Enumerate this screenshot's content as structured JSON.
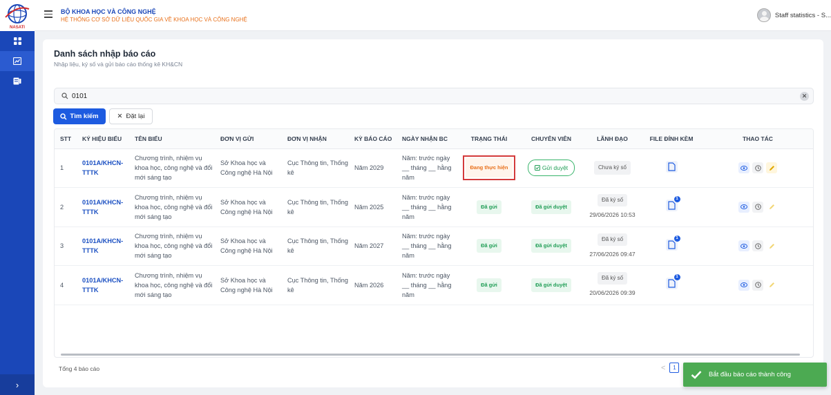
{
  "header": {
    "org_title": "BỘ KHOA HỌC VÀ CÔNG NGHỆ",
    "org_subtitle": "HỆ THỐNG CƠ SỞ DỮ LIỆU QUỐC GIA VỀ KHOA HỌC VÀ CÔNG NGHỆ",
    "user_name": "Staff statistics - S..."
  },
  "logo": {
    "text": "NASATI"
  },
  "sidebar": {
    "items": [
      {
        "icon": "dashboard-icon"
      },
      {
        "icon": "chart-icon"
      },
      {
        "icon": "report-icon"
      }
    ],
    "expand_label": "›"
  },
  "page": {
    "title": "Danh sách nhập báo cáo",
    "subtitle": "Nhập liệu, ký số và gửi báo cáo thống kê KH&CN"
  },
  "search": {
    "value": "0101",
    "placeholder": ""
  },
  "buttons": {
    "search": "Tìm kiếm",
    "reset": "Đặt lại"
  },
  "table": {
    "columns": [
      "STT",
      "KÝ HIỆU BIỂU",
      "TÊN BIỂU",
      "ĐƠN VỊ GỬI",
      "ĐƠN VỊ NHẬN",
      "KỲ BÁO CÁO",
      "NGÀY NHẬN BC",
      "TRẠNG THÁI",
      "CHUYÊN VIÊN",
      "LÃNH ĐẠO",
      "FILE ĐÍNH KÈM",
      "THAO TÁC"
    ],
    "rows": [
      {
        "stt": "1",
        "code": "0101A/KHCN-TTTK",
        "name": "Chương trình, nhiệm vụ khoa học, công nghệ và đổi mới sáng tạo",
        "sender": "Sở Khoa học và Công nghệ Hà Nội",
        "receiver": "Cục Thông tin, Thống kê",
        "period": "Năm 2029",
        "received": "Năm: trước ngày __ tháng __ hằng năm",
        "status": "Đang thực hiện",
        "specialist": "Gửi duyệt",
        "leader": "Chưa ký số",
        "leader_date": "",
        "files": ""
      },
      {
        "stt": "2",
        "code": "0101A/KHCN-TTTK",
        "name": "Chương trình, nhiệm vụ khoa học, công nghệ và đổi mới sáng tạo",
        "sender": "Sở Khoa học và Công nghệ Hà Nội",
        "receiver": "Cục Thông tin, Thống kê",
        "period": "Năm 2025",
        "received": "Năm: trước ngày __ tháng __ hằng năm",
        "status": "Đã gửi",
        "specialist": "Đã gửi duyệt",
        "leader": "Đã ký số",
        "leader_date": "29/06/2026 10:53",
        "files": "1"
      },
      {
        "stt": "3",
        "code": "0101A/KHCN-TTTK",
        "name": "Chương trình, nhiệm vụ khoa học, công nghệ và đổi mới sáng tạo",
        "sender": "Sở Khoa học và Công nghệ Hà Nội",
        "receiver": "Cục Thông tin, Thống kê",
        "period": "Năm 2027",
        "received": "Năm: trước ngày __ tháng __ hằng năm",
        "status": "Đã gửi",
        "specialist": "Đã gửi duyệt",
        "leader": "Đã ký số",
        "leader_date": "27/06/2026 09:47",
        "files": "1"
      },
      {
        "stt": "4",
        "code": "0101A/KHCN-TTTK",
        "name": "Chương trình, nhiệm vụ khoa học, công nghệ và đổi mới sáng tạo",
        "sender": "Sở Khoa học và Công nghệ Hà Nội",
        "receiver": "Cục Thông tin, Thống kê",
        "period": "Năm 2026",
        "received": "Năm: trước ngày __ tháng __ hằng năm",
        "status": "Đã gửi",
        "specialist": "Đã gửi duyệt",
        "leader": "Đã ký số",
        "leader_date": "20/06/2026 09:39",
        "files": "1"
      }
    ]
  },
  "footer": {
    "total": "Tổng 4 báo cáo",
    "prev": "<",
    "page": "1"
  },
  "toast": {
    "message": "Bắt đầu báo cáo thành công"
  },
  "colors": {
    "primary": "#1d5be0",
    "sidebar": "#1a47b8",
    "accent": "#e8701a",
    "success": "#4caa52",
    "highlight": "#d43a3a"
  }
}
